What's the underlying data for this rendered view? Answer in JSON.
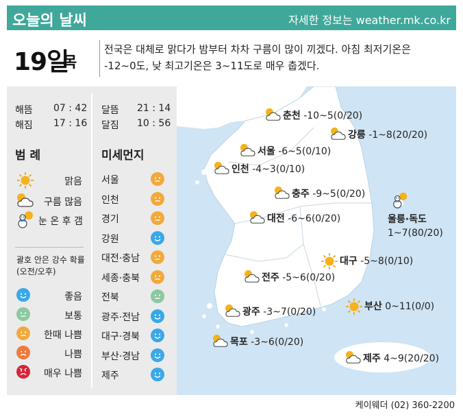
{
  "header": {
    "title": "오늘의 날씨",
    "site": "자세한 정보는 weather.mk.co.kr"
  },
  "date": {
    "day": "19일",
    "weekday": "목"
  },
  "forecast": {
    "line1": "전국은 대체로 맑다가 밤부터 차차 구름이 많이 끼겠다. 아침 최저기온은",
    "line2": "-12~0도, 낮 최고기온은 3~11도로 매우 춥겠다."
  },
  "sun_moon": {
    "sunrise_label": "해뜸",
    "sunrise": "07 : 42",
    "sunset_label": "해짐",
    "sunset": "17 : 16",
    "moonrise_label": "달뜸",
    "moonrise": "21 : 14",
    "moonset_label": "달짐",
    "moonset": "10 : 56"
  },
  "legend": {
    "title": "범 례",
    "items": [
      {
        "icon": "sun-icon",
        "label": "맑음"
      },
      {
        "icon": "sun-cloud-icon",
        "label": "구름 많음"
      },
      {
        "icon": "snow-then-clear-icon",
        "label": "눈 온 후 갬"
      }
    ],
    "precip_note_1": "괄호 안은 강수 확률",
    "precip_note_2": "(오전/오후)",
    "dust_levels": [
      {
        "label": "좋음",
        "color": "#3aa8e8",
        "mood": "happy"
      },
      {
        "label": "보통",
        "color": "#8cc8a0",
        "mood": "neutral"
      },
      {
        "label": "한때 나쁨",
        "color": "#f2a93b",
        "mood": "neutral"
      },
      {
        "label": "나쁨",
        "color": "#ef7a3c",
        "mood": "sad"
      },
      {
        "label": "매우 나쁨",
        "color": "#d8243a",
        "mood": "angry"
      }
    ]
  },
  "fine_dust": {
    "title": "미세먼지",
    "regions": [
      {
        "name": "서울",
        "level": "한때 나쁨",
        "color": "#f2a93b"
      },
      {
        "name": "인천",
        "level": "한때 나쁨",
        "color": "#f2a93b"
      },
      {
        "name": "경기",
        "level": "한때 나쁨",
        "color": "#f2a93b"
      },
      {
        "name": "강원",
        "level": "좋음",
        "color": "#3aa8e8"
      },
      {
        "name": "대전·충남",
        "level": "한때 나쁨",
        "color": "#f2a93b"
      },
      {
        "name": "세종·충북",
        "level": "한때 나쁨",
        "color": "#f2a93b"
      },
      {
        "name": "전북",
        "level": "보통",
        "color": "#8cc8a0"
      },
      {
        "name": "광주·전남",
        "level": "좋음",
        "color": "#3aa8e8"
      },
      {
        "name": "대구·경북",
        "level": "좋음",
        "color": "#3aa8e8"
      },
      {
        "name": "부산·경남",
        "level": "좋음",
        "color": "#3aa8e8"
      },
      {
        "name": "제주",
        "level": "좋음",
        "color": "#3aa8e8"
      }
    ]
  },
  "cities": [
    {
      "name": "춘천",
      "temp": "-10~5",
      "pop": "(0/20)",
      "icon": "sun-cloud-icon"
    },
    {
      "name": "강릉",
      "temp": "-1~8",
      "pop": "(20/20)",
      "icon": "sun-cloud-icon"
    },
    {
      "name": "서울",
      "temp": "-6~5",
      "pop": "(0/10)",
      "icon": "sun-cloud-icon"
    },
    {
      "name": "인천",
      "temp": "-4~3",
      "pop": "(0/10)",
      "icon": "sun-cloud-icon"
    },
    {
      "name": "충주",
      "temp": "-9~5",
      "pop": "(0/20)",
      "icon": "sun-cloud-icon"
    },
    {
      "name": "대전",
      "temp": "-6~6",
      "pop": "(0/20)",
      "icon": "sun-cloud-icon"
    },
    {
      "name": "울릉·독도",
      "temp": "1~7",
      "pop": "(80/20)",
      "icon": "snow-then-clear-icon"
    },
    {
      "name": "대구",
      "temp": "-5~8",
      "pop": "(0/10)",
      "icon": "sun-icon"
    },
    {
      "name": "전주",
      "temp": "-5~6",
      "pop": "(0/20)",
      "icon": "sun-cloud-icon"
    },
    {
      "name": "부산",
      "temp": "0~11",
      "pop": "(0/0)",
      "icon": "sun-icon"
    },
    {
      "name": "광주",
      "temp": "-3~7",
      "pop": "(0/20)",
      "icon": "sun-cloud-icon"
    },
    {
      "name": "목포",
      "temp": "-3~6",
      "pop": "(0/20)",
      "icon": "sun-cloud-icon"
    },
    {
      "name": "제주",
      "temp": "4~9",
      "pop": "(20/20)",
      "icon": "sun-cloud-icon"
    }
  ],
  "credit": "케이웨더 (02) 360-2200",
  "colors": {
    "header_bg": "#3fa89a",
    "sea": "#cfe4f4",
    "land": "#ffffff",
    "panel_bg": "#ebebeb",
    "sun": "#f5b21b"
  }
}
